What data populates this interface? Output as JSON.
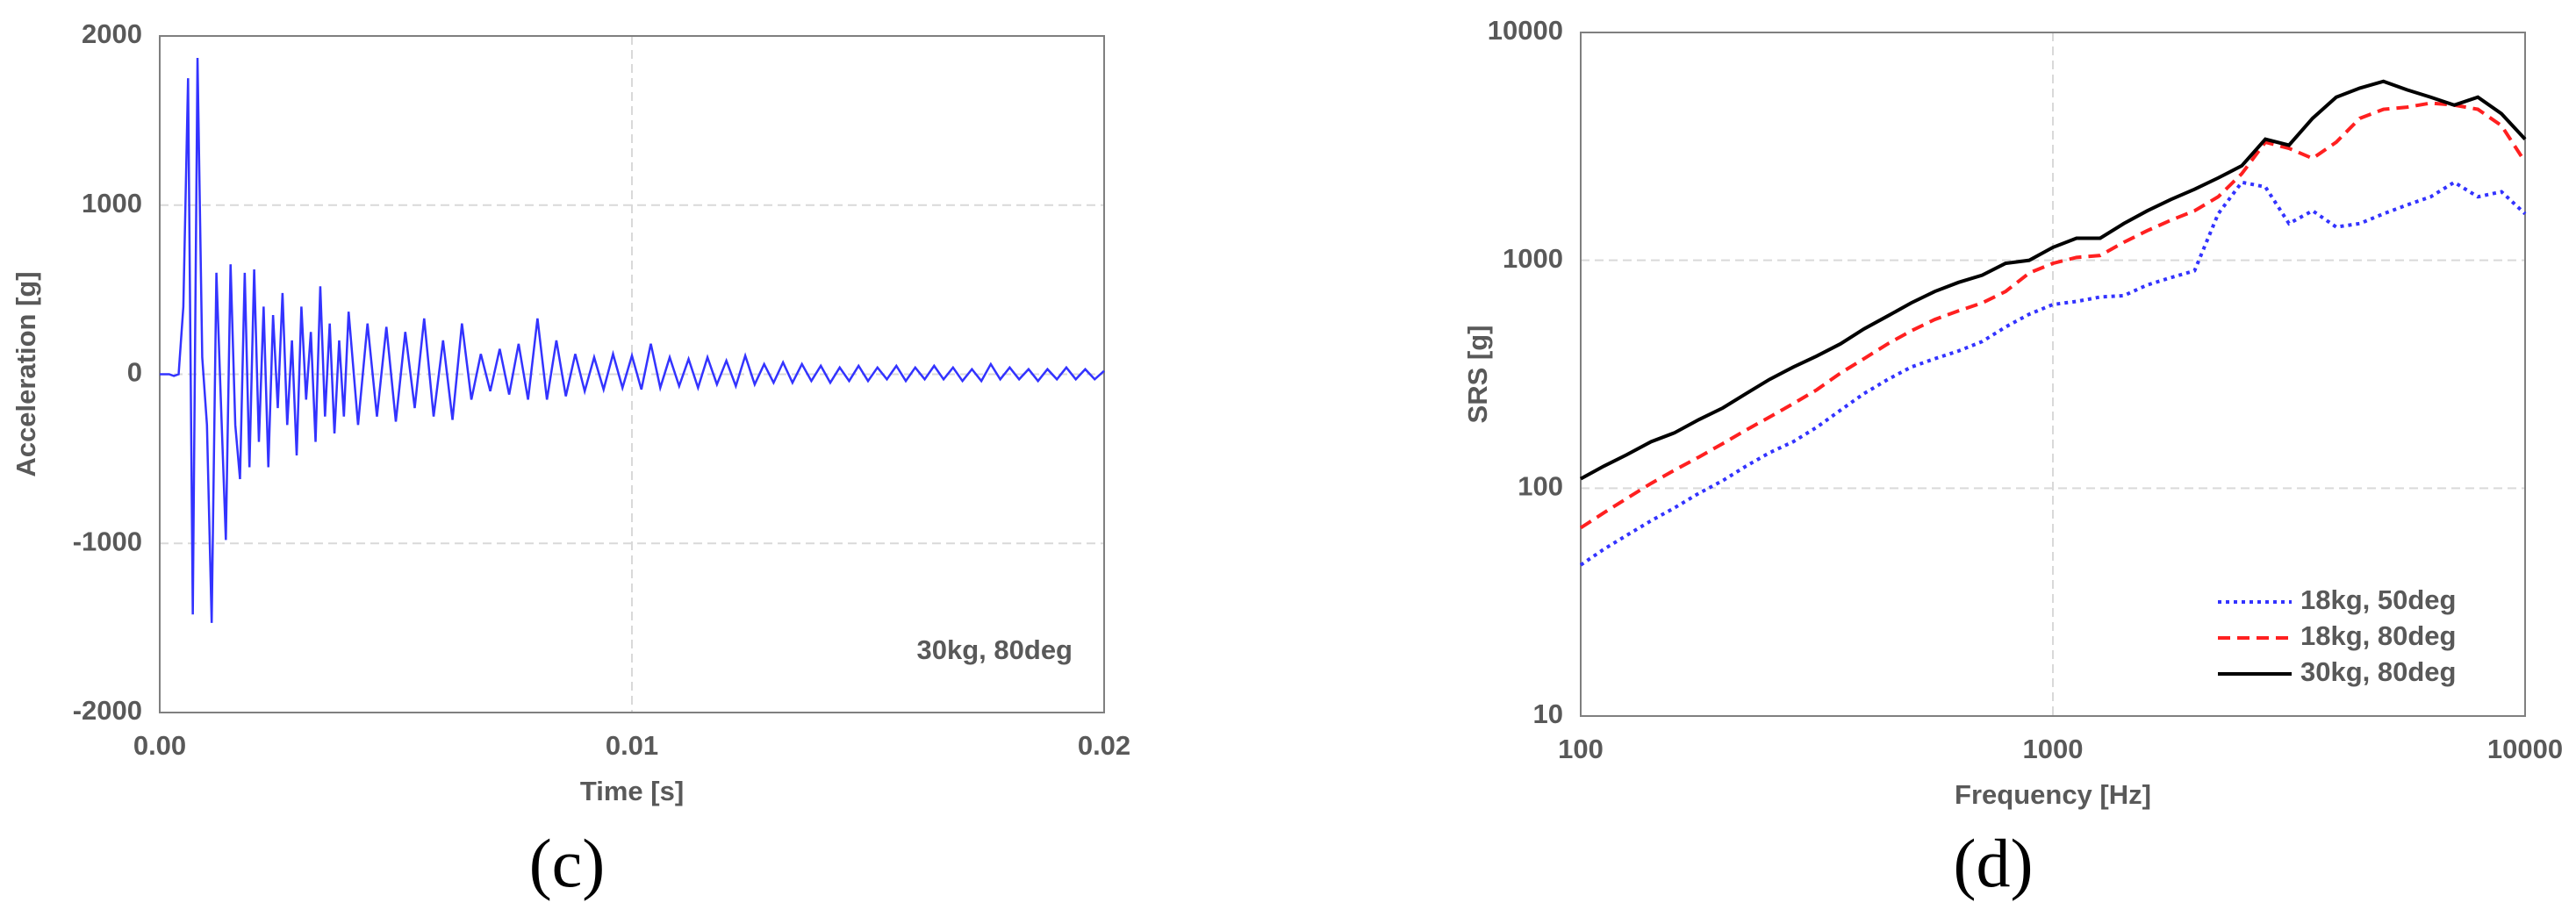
{
  "chart_data": [
    {
      "type": "line",
      "panel_label": "(c)",
      "xlabel": "Time [s]",
      "ylabel": "Acceleration [g]",
      "annotation": "30kg, 80deg",
      "color": "#3333ff",
      "grid": true,
      "log_x": false,
      "log_y": false,
      "xlim": [
        0,
        0.02
      ],
      "xticks": [
        {
          "value": 0,
          "label": "0.00"
        },
        0.01,
        0.02
      ],
      "ylim": [
        -2000,
        2000
      ],
      "yticks": [
        -2000,
        -1000,
        0,
        1000,
        2000
      ],
      "x": [
        0,
        0.0001,
        0.0002,
        0.0003,
        0.0004,
        0.0005,
        0.0006,
        0.0007,
        0.0008,
        0.0009,
        0.001,
        0.0011,
        0.0012,
        0.0013,
        0.0014,
        0.0015,
        0.0016,
        0.0017,
        0.0018,
        0.0019,
        0.002,
        0.0021,
        0.0022,
        0.0023,
        0.0024,
        0.0025,
        0.0026,
        0.0027,
        0.0028,
        0.0029,
        0.003,
        0.0031,
        0.0032,
        0.0033,
        0.0034,
        0.0035,
        0.0036,
        0.0037,
        0.0038,
        0.0039,
        0.004,
        0.0042,
        0.0044,
        0.0046,
        0.0048,
        0.005,
        0.0052,
        0.0054,
        0.0056,
        0.0058,
        0.006,
        0.0062,
        0.0064,
        0.0066,
        0.0068,
        0.007,
        0.0072,
        0.0074,
        0.0076,
        0.0078,
        0.008,
        0.0082,
        0.0084,
        0.0086,
        0.0088,
        0.009,
        0.0092,
        0.0094,
        0.0096,
        0.0098,
        0.01,
        0.0102,
        0.0104,
        0.0106,
        0.0108,
        0.011,
        0.0112,
        0.0114,
        0.0116,
        0.0118,
        0.012,
        0.0122,
        0.0124,
        0.0126,
        0.0128,
        0.013,
        0.0132,
        0.0134,
        0.0136,
        0.0138,
        0.014,
        0.0142,
        0.0144,
        0.0146,
        0.0148,
        0.015,
        0.0152,
        0.0154,
        0.0156,
        0.0158,
        0.016,
        0.0162,
        0.0164,
        0.0166,
        0.0168,
        0.017,
        0.0172,
        0.0174,
        0.0176,
        0.0178,
        0.018,
        0.0182,
        0.0184,
        0.0186,
        0.0188,
        0.019,
        0.0192,
        0.0194,
        0.0196,
        0.0198,
        0.02
      ],
      "values": [
        0,
        0,
        0,
        -10,
        0,
        400,
        1750,
        -1420,
        1870,
        100,
        -300,
        -1470,
        600,
        -200,
        -980,
        650,
        -300,
        -620,
        600,
        -550,
        620,
        -400,
        400,
        -550,
        350,
        -200,
        480,
        -300,
        200,
        -480,
        400,
        -150,
        250,
        -400,
        520,
        -250,
        300,
        -350,
        200,
        -250,
        370,
        -300,
        300,
        -250,
        280,
        -280,
        250,
        -200,
        330,
        -250,
        200,
        -270,
        300,
        -150,
        120,
        -100,
        150,
        -120,
        180,
        -150,
        330,
        -150,
        200,
        -130,
        120,
        -100,
        100,
        -90,
        120,
        -80,
        110,
        -90,
        180,
        -80,
        100,
        -70,
        90,
        -80,
        100,
        -60,
        80,
        -70,
        110,
        -60,
        60,
        -50,
        70,
        -50,
        60,
        -40,
        50,
        -50,
        40,
        -40,
        50,
        -40,
        40,
        -30,
        50,
        -40,
        40,
        -30,
        50,
        -30,
        40,
        -40,
        30,
        -40,
        60,
        -30,
        40,
        -30,
        30,
        -40,
        30,
        -30,
        40,
        -30,
        30,
        -30,
        20
      ]
    },
    {
      "type": "line",
      "panel_label": "(d)",
      "xlabel": "Frequency [Hz]",
      "ylabel": "SRS [g]",
      "grid": true,
      "log_x": true,
      "log_y": true,
      "legend": "lower right",
      "xlim": [
        100,
        10000
      ],
      "xticks": [
        100,
        1000,
        10000
      ],
      "ylim": [
        10,
        10000
      ],
      "yticks": [
        10,
        100,
        1000,
        10000
      ],
      "x": [
        100,
        112,
        125,
        141,
        158,
        178,
        200,
        224,
        251,
        282,
        316,
        355,
        398,
        447,
        501,
        562,
        631,
        708,
        794,
        891,
        1000,
        1122,
        1259,
        1413,
        1585,
        1778,
        1995,
        2239,
        2512,
        2818,
        3162,
        3548,
        3981,
        4467,
        5012,
        5623,
        6310,
        7079,
        7943,
        8913,
        10000
      ],
      "series": [
        {
          "name": "18kg, 50deg",
          "color": "#3333ff",
          "dash": "dotted",
          "values": [
            46,
            54,
            62,
            72,
            82,
            95,
            108,
            125,
            143,
            160,
            185,
            220,
            260,
            300,
            340,
            370,
            400,
            440,
            510,
            580,
            640,
            660,
            690,
            700,
            780,
            840,
            900,
            1600,
            2200,
            2100,
            1450,
            1650,
            1400,
            1450,
            1600,
            1750,
            1900,
            2200,
            1900,
            2000,
            1600
          ]
        },
        {
          "name": "18kg, 80deg",
          "color": "#ff2020",
          "dash": "dashed",
          "values": [
            67,
            78,
            90,
            105,
            120,
            137,
            157,
            180,
            205,
            235,
            270,
            320,
            370,
            430,
            490,
            550,
            600,
            650,
            730,
            880,
            970,
            1030,
            1050,
            1200,
            1350,
            1500,
            1650,
            1900,
            2400,
            3300,
            3100,
            2800,
            3300,
            4200,
            4600,
            4700,
            4900,
            4800,
            4600,
            3900,
            2700
          ]
        },
        {
          "name": "30kg, 80deg",
          "color": "#000000",
          "dash": "solid",
          "values": [
            110,
            125,
            140,
            160,
            175,
            200,
            225,
            260,
            300,
            340,
            380,
            430,
            500,
            570,
            650,
            730,
            800,
            860,
            970,
            1000,
            1140,
            1250,
            1250,
            1450,
            1650,
            1850,
            2050,
            2300,
            2600,
            3400,
            3200,
            4200,
            5200,
            5700,
            6100,
            5600,
            5200,
            4800,
            5200,
            4400,
            3400
          ]
        }
      ]
    }
  ]
}
